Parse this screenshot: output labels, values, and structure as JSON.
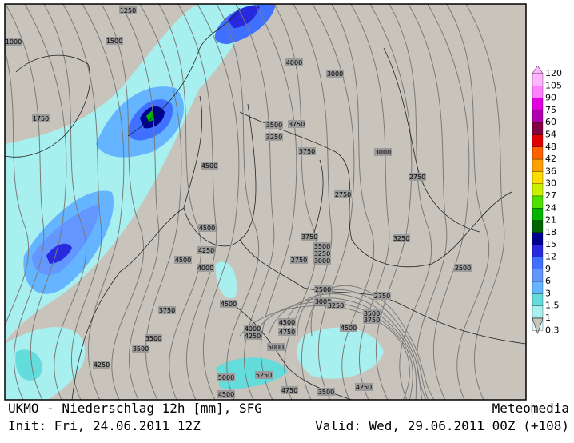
{
  "footer": {
    "title": "UKMO - Niederschlag 12h [mm], SFG",
    "brand": "Meteomedia",
    "init": "Init: Fri, 24.06.2011 12Z",
    "valid": "Valid: Wed, 29.06.2011 00Z (+108)"
  },
  "legend": {
    "labels": [
      "120",
      "105",
      "90",
      "75",
      "60",
      "54",
      "48",
      "42",
      "36",
      "30",
      "27",
      "24",
      "21",
      "18",
      "15",
      "12",
      "9",
      "6",
      "3",
      "1.5",
      "1",
      "0.3"
    ],
    "colors": [
      "#ffb4ff",
      "#ff80ff",
      "#e000e0",
      "#b000b0",
      "#800040",
      "#e00000",
      "#ff6000",
      "#ffa000",
      "#ffdc00",
      "#c8f000",
      "#50e000",
      "#00b400",
      "#006400",
      "#000090",
      "#2828dc",
      "#4070ff",
      "#6496ff",
      "#64b4ff",
      "#64dcdc",
      "#a8f0f0",
      "#dcf8f8",
      "#c8c4bc"
    ]
  },
  "contour_labels": [
    "1250",
    "1000",
    "1500",
    "4000",
    "3000",
    "1750",
    "3500",
    "3750",
    "3250",
    "3750",
    "3000",
    "4500",
    "2750",
    "2750",
    "4500",
    "3750",
    "3250",
    "4250",
    "3500",
    "3250",
    "4500",
    "2750",
    "3000",
    "2500",
    "4000",
    "2500",
    "2750",
    "3750",
    "4500",
    "3000",
    "3250",
    "3500",
    "3750",
    "4500",
    "4750",
    "4000",
    "4250",
    "4500",
    "3500",
    "3500",
    "5000",
    "4250",
    "5000",
    "5250",
    "4750",
    "3500",
    "4500",
    "4250"
  ]
}
